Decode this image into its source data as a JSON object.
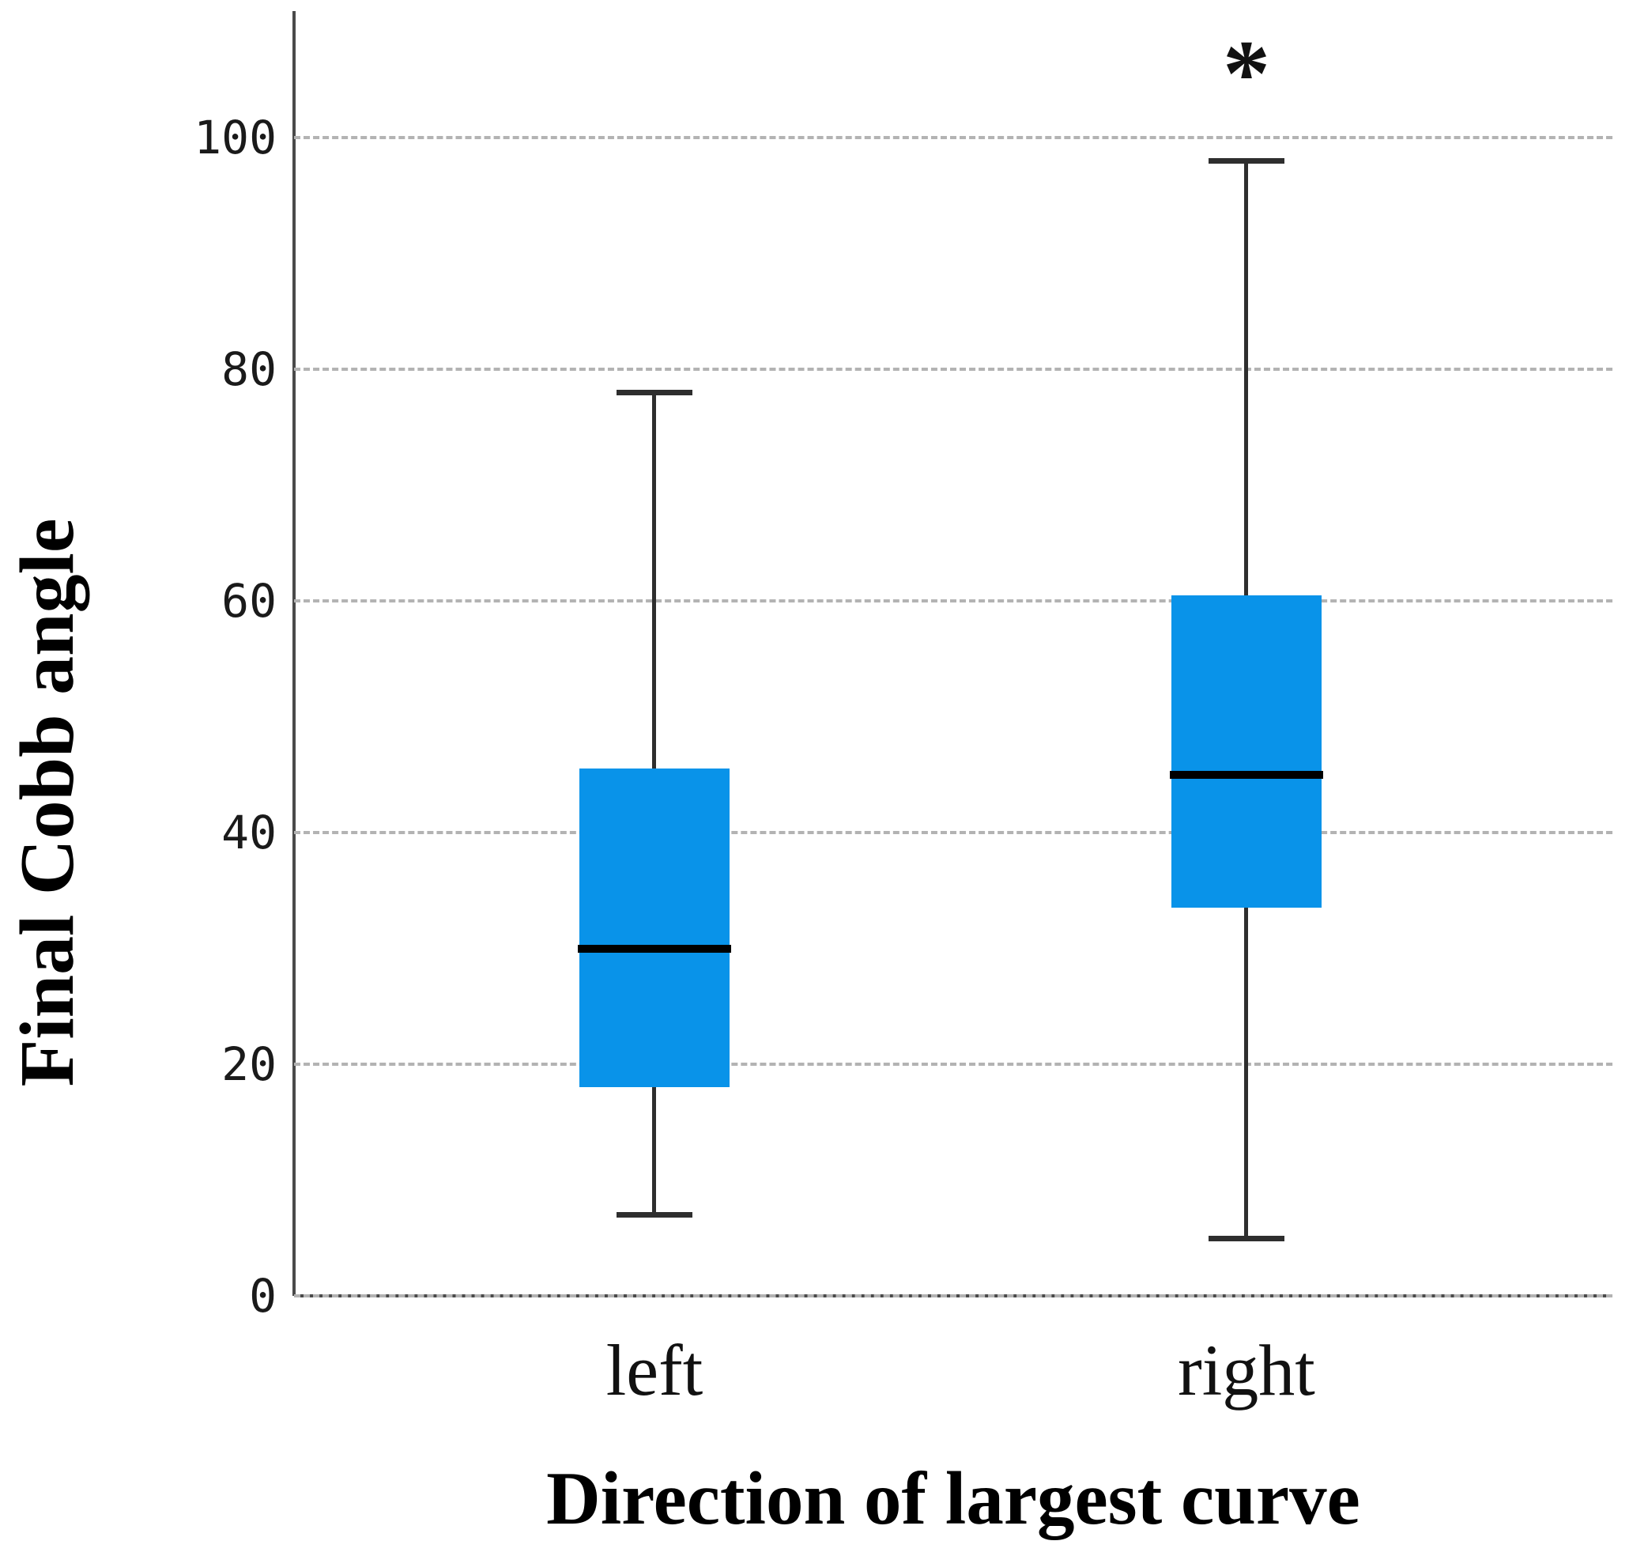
{
  "figure": {
    "y_axis_title": "Final Cobb angle",
    "x_axis_title": "Direction of largest curve"
  },
  "chart_data": {
    "type": "boxplot",
    "title": "",
    "xlabel": "Direction of largest curve",
    "ylabel": "Final Cobb angle",
    "categories": [
      "left",
      "right"
    ],
    "yticks": [
      0,
      20,
      40,
      60,
      80,
      100
    ],
    "ylim": [
      0,
      110
    ],
    "grid": "horizontal dashed",
    "legend": "none",
    "box_fill_color": "#0993e9",
    "median_color": "#000000",
    "whisker_color": "#2e2e2e",
    "series": [
      {
        "name": "left",
        "min": 7,
        "q1": 18,
        "median": 30,
        "q3": 45.5,
        "max": 78,
        "annotation": ""
      },
      {
        "name": "right",
        "min": 5,
        "q1": 33.5,
        "median": 45,
        "q3": 60.5,
        "max": 98,
        "annotation": "*"
      }
    ]
  }
}
